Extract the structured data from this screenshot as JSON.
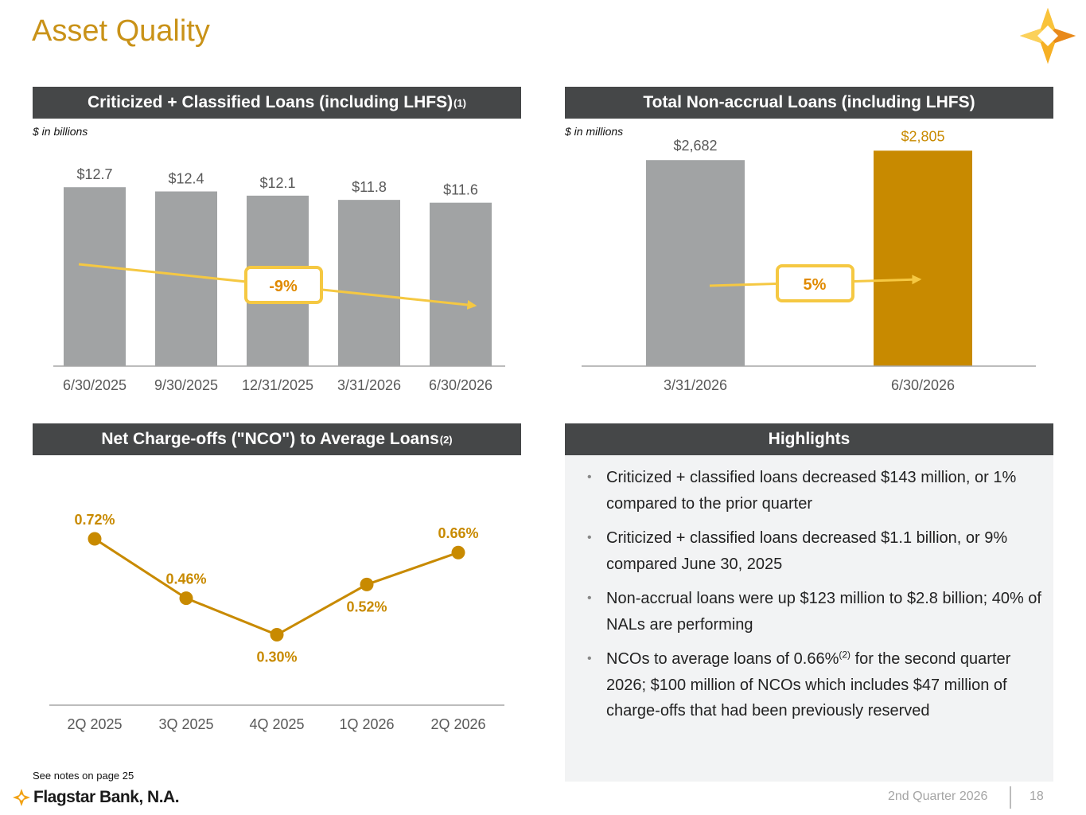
{
  "title": "Asset Quality",
  "colors": {
    "gold": "#c88a00",
    "title_gold": "#c99218",
    "gray_bar": "#a1a3a4",
    "arrow_yellow": "#f5c842",
    "header_bg": "#454748"
  },
  "charts": {
    "criticized": {
      "header": "Criticized + Classified Loans (including LHFS)",
      "header_sup": "(1)",
      "unit": "$ in billions",
      "change_label": "-9%"
    },
    "nonaccrual": {
      "header": "Total Non-accrual Loans (including LHFS)",
      "unit": "$ in millions",
      "change_label": "5%"
    },
    "nco": {
      "header": "Net Charge-offs (\"NCO\") to Average Loans",
      "header_sup": "(2)"
    }
  },
  "chart_data": [
    {
      "type": "bar",
      "title": "Criticized + Classified Loans (including LHFS)(1)",
      "unit": "$ in billions",
      "categories": [
        "6/30/2025",
        "9/30/2025",
        "12/31/2025",
        "3/31/2026",
        "6/30/2026"
      ],
      "values": [
        12.7,
        12.4,
        12.1,
        11.8,
        11.6
      ],
      "labels": [
        "$12.7",
        "$12.4",
        "$12.1",
        "$11.8",
        "$11.6"
      ],
      "annotation": "-9%"
    },
    {
      "type": "bar",
      "title": "Total Non-accrual Loans (including LHFS)",
      "unit": "$ in millions",
      "categories": [
        "3/31/2026",
        "6/30/2026"
      ],
      "values": [
        2682,
        2805
      ],
      "labels": [
        "$2,682",
        "$2,805"
      ],
      "annotation": "5%"
    },
    {
      "type": "line",
      "title": "Net Charge-offs (\"NCO\") to Average Loans(2)",
      "categories": [
        "2Q 2025",
        "3Q 2025",
        "4Q 2025",
        "1Q 2026",
        "2Q 2026"
      ],
      "values": [
        0.72,
        0.46,
        0.3,
        0.52,
        0.66
      ],
      "labels": [
        "0.72%",
        "0.46%",
        "0.30%",
        "0.52%",
        "0.66%"
      ]
    }
  ],
  "highlights": {
    "header": "Highlights",
    "items": [
      {
        "text": "Criticized + classified loans decreased $143 million, or 1% compared to the prior quarter"
      },
      {
        "text": "Criticized + classified loans decreased $1.1 billion, or 9% compared June 30, 2025"
      },
      {
        "text": "Non-accrual loans were up $123 million to $2.8 billion; 40% of NALs are performing"
      },
      {
        "text_before": "NCOs to average loans of 0.66%",
        "sup": "(2)",
        "text_after": " for the second quarter 2026; $100 million of NCOs which includes $47 million of charge-offs that had been previously reserved"
      }
    ]
  },
  "footer": {
    "notes": "See notes on page 25",
    "brand": "Flagstar Bank, N.A.",
    "quarter": "2nd Quarter 2026",
    "page": "18"
  }
}
